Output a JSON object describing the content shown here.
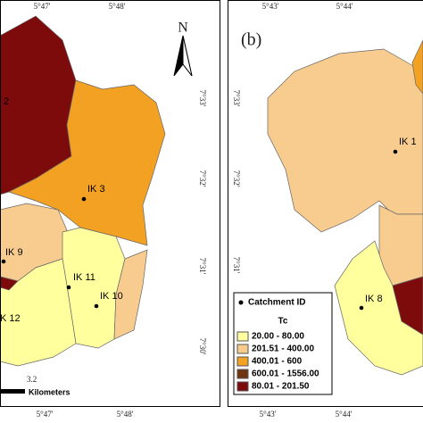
{
  "panels": [
    {
      "top_ticks": [
        "5°47'",
        "5°48'"
      ],
      "side_ticks": [
        "7°33'",
        "7°32'",
        "7°31'",
        "7°30'"
      ],
      "bottom_ticks": [
        "5°47'",
        "5°48'"
      ],
      "north": "N",
      "scale_value": "3.2",
      "scale_unit": "Kilometers",
      "catchments": [
        "2",
        "IK 3",
        "IK 9",
        "IK 11",
        "IK 10",
        "K 12"
      ]
    },
    {
      "label": "(b)",
      "top_ticks": [
        "5°43'",
        "5°44'"
      ],
      "side_ticks": [
        "7°33'",
        "7°32'",
        "7°31'",
        "7°30'"
      ],
      "bottom_ticks": [
        "5°43'",
        "5°44'"
      ],
      "catchments": [
        "IK 1",
        "IK 8"
      ],
      "legend": {
        "marker": "Catchment ID",
        "title": "Tc",
        "entries": [
          {
            "label": "20.00 - 80.00",
            "color": "#ffff9e"
          },
          {
            "label": "201.51 - 400.00",
            "color": "#f8cc8f"
          },
          {
            "label": "400.01 - 600",
            "color": "#f2a122"
          },
          {
            "label": "600.01 - 1556.00",
            "color": "#6e3510"
          },
          {
            "label": "80.01 - 201.50",
            "color": "#7d0b0b"
          }
        ]
      }
    }
  ]
}
